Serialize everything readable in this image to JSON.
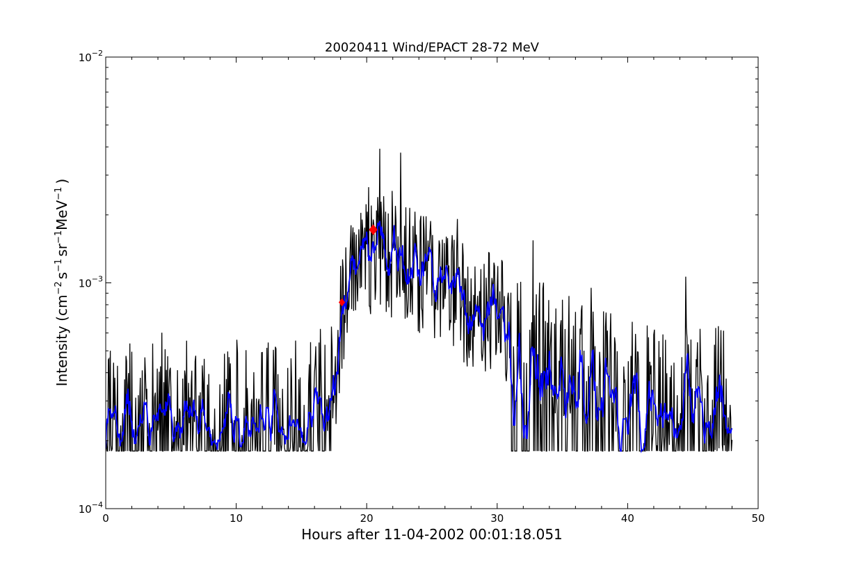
{
  "chart_data": {
    "type": "line",
    "title": "20020411 Wind/EPACT 28-72 MeV",
    "xlabel": "Hours after 11-04-2002 00:01:18.051",
    "ylabel": "Intensity (cm-2 s-1 sr-1 MeV-1 )",
    "ylabel_parts": {
      "pre": "Intensity (cm",
      "sup1": "−2",
      "mid1": "s",
      "sup2": "−1",
      "mid2": "sr",
      "sup3": "−1",
      "mid3": "MeV",
      "sup4": "−1",
      "post": ")"
    },
    "xlim": [
      0,
      50
    ],
    "ylim": [
      0.0001,
      0.01
    ],
    "yscale": "log",
    "x_ticks": [
      "0",
      "10",
      "20",
      "30",
      "40",
      "50"
    ],
    "y_ticks": [
      {
        "value": 0.0001,
        "base": "10",
        "exp": "-4"
      },
      {
        "value": 0.001,
        "base": "10",
        "exp": "-3"
      },
      {
        "value": 0.01,
        "base": "10",
        "exp": "-2"
      }
    ],
    "grid": false,
    "x_range_data": [
      0,
      48
    ],
    "sample_step_hours": 0.05,
    "noise_floor": 0.00018,
    "base_levels": [
      {
        "x": 0,
        "y": 0.00027
      },
      {
        "x": 17.3,
        "y": 0.00028
      },
      {
        "x": 18.2,
        "y": 0.0008
      },
      {
        "x": 19.5,
        "y": 0.0013
      },
      {
        "x": 21.5,
        "y": 0.0013
      },
      {
        "x": 24,
        "y": 0.00105
      },
      {
        "x": 27,
        "y": 0.0008
      },
      {
        "x": 31,
        "y": 0.00062
      },
      {
        "x": 35,
        "y": 0.00045
      },
      {
        "x": 40,
        "y": 0.00035
      },
      {
        "x": 48,
        "y": 0.00032
      }
    ],
    "series": [
      {
        "color": "#000000"
      },
      {
        "color": "#0000ff"
      }
    ],
    "markers": [
      {
        "x": 18.1,
        "y": 0.00082,
        "color": "#ff0000"
      },
      {
        "x": 20.5,
        "y": 0.00172,
        "color": "#ff0000"
      }
    ]
  }
}
